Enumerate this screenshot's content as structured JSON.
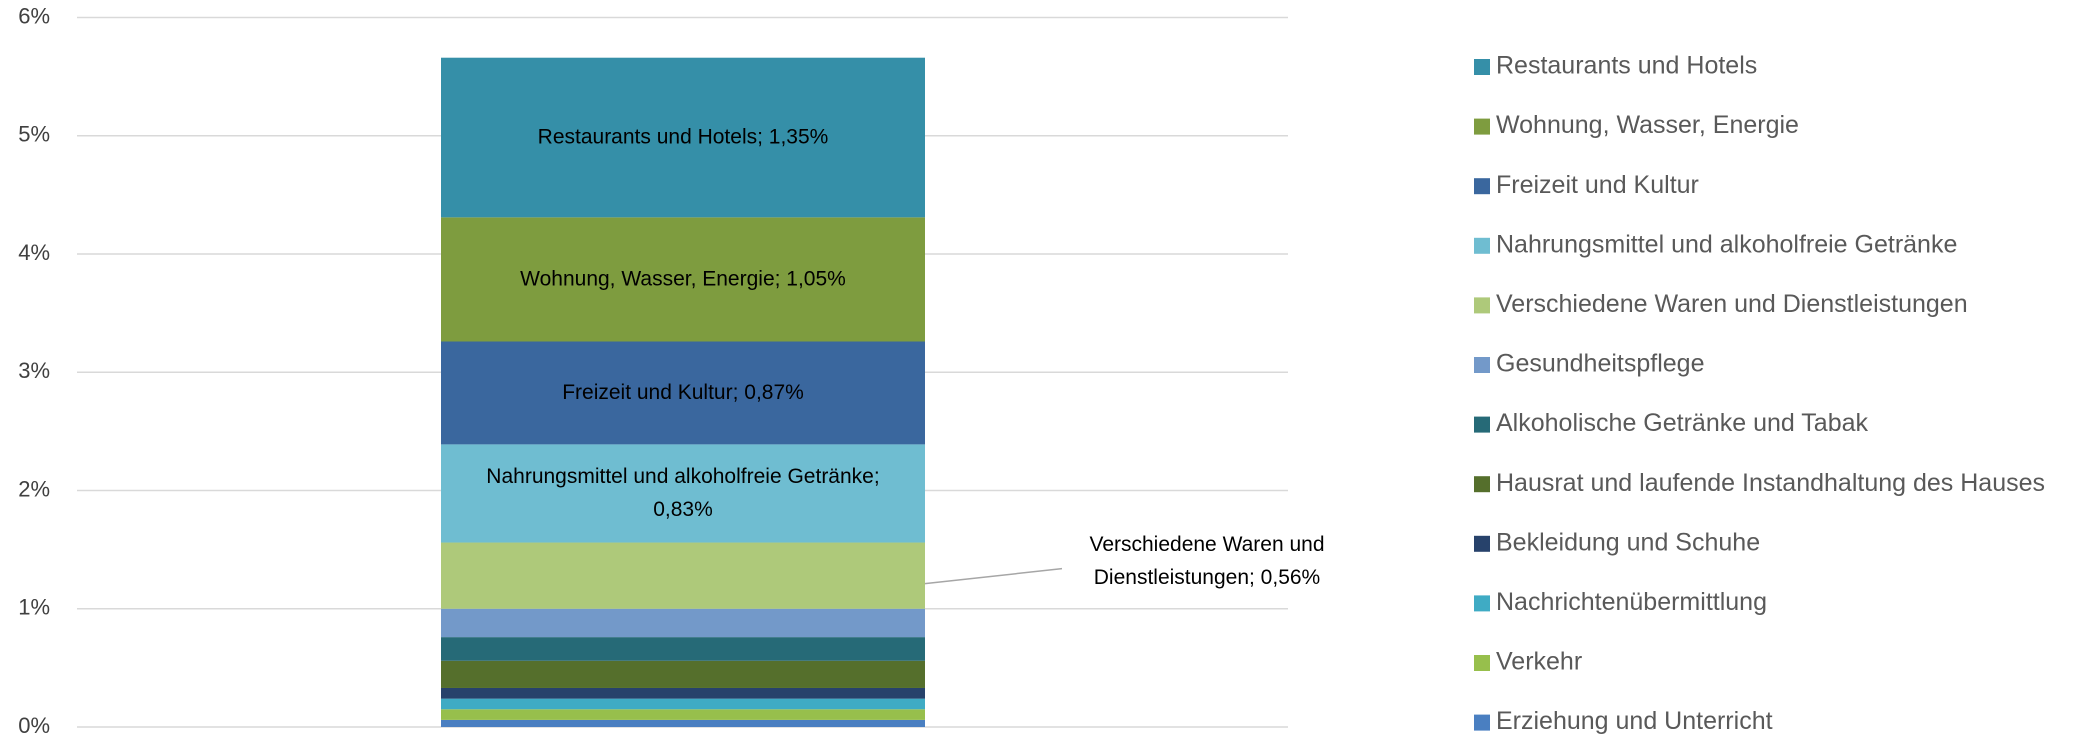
{
  "chart_data": {
    "type": "stacked_bar",
    "series": [
      {
        "name": "Restaurants und Hotels",
        "color": "#358fa8",
        "values": [
          1.35
        ],
        "value_labels": [
          "Restaurants und Hotels; 1,35%"
        ]
      },
      {
        "name": "Wohnung, Wasser, Energie",
        "color": "#7e9c3f",
        "values": [
          1.05
        ],
        "value_labels": [
          "Wohnung, Wasser, Energie; 1,05%"
        ]
      },
      {
        "name": "Freizeit und Kultur",
        "color": "#3a679e",
        "values": [
          0.87
        ],
        "value_labels": [
          "Freizeit und Kultur; 0,87%"
        ]
      },
      {
        "name": "Nahrungsmittel und alkoholfreie Getränke",
        "color": "#6fbdd1",
        "values": [
          0.83
        ],
        "value_labels": [
          "Nahrungsmittel und alkoholfreie Getränke; 0,83%"
        ]
      },
      {
        "name": "Verschiedene Waren und Dienstleistungen",
        "color": "#aec97a",
        "values": [
          0.56
        ],
        "value_labels": [
          "Verschiedene Waren und Dienstleistungen; 0,56%"
        ]
      },
      {
        "name": "Gesundheitspflege",
        "color": "#7399c9",
        "values": [
          0.24
        ]
      },
      {
        "name": "Alkoholische Getränke und Tabak",
        "color": "#266a77",
        "values": [
          0.2
        ]
      },
      {
        "name": "Hausrat und laufende Instandhaltung des Hauses",
        "color": "#556f2c",
        "values": [
          0.23
        ]
      },
      {
        "name": "Bekleidung und Schuhe",
        "color": "#27426b",
        "values": [
          0.09
        ]
      },
      {
        "name": "Nachrichtenübermittlung",
        "color": "#3fabc4",
        "values": [
          0.09
        ]
      },
      {
        "name": "Verkehr",
        "color": "#97bf4c",
        "values": [
          0.09
        ]
      },
      {
        "name": "Erziehung und Unterricht",
        "color": "#4a7fc1",
        "values": [
          0.06
        ]
      }
    ],
    "ylim": [
      0,
      6
    ],
    "yticks": [
      {
        "value": 0,
        "label": "0%"
      },
      {
        "value": 1,
        "label": "1%"
      },
      {
        "value": 2,
        "label": "2%"
      },
      {
        "value": 3,
        "label": "3%"
      },
      {
        "value": 4,
        "label": "4%"
      },
      {
        "value": 5,
        "label": "5%"
      },
      {
        "value": 6,
        "label": "6%"
      }
    ],
    "grid": true,
    "legend": "right"
  }
}
